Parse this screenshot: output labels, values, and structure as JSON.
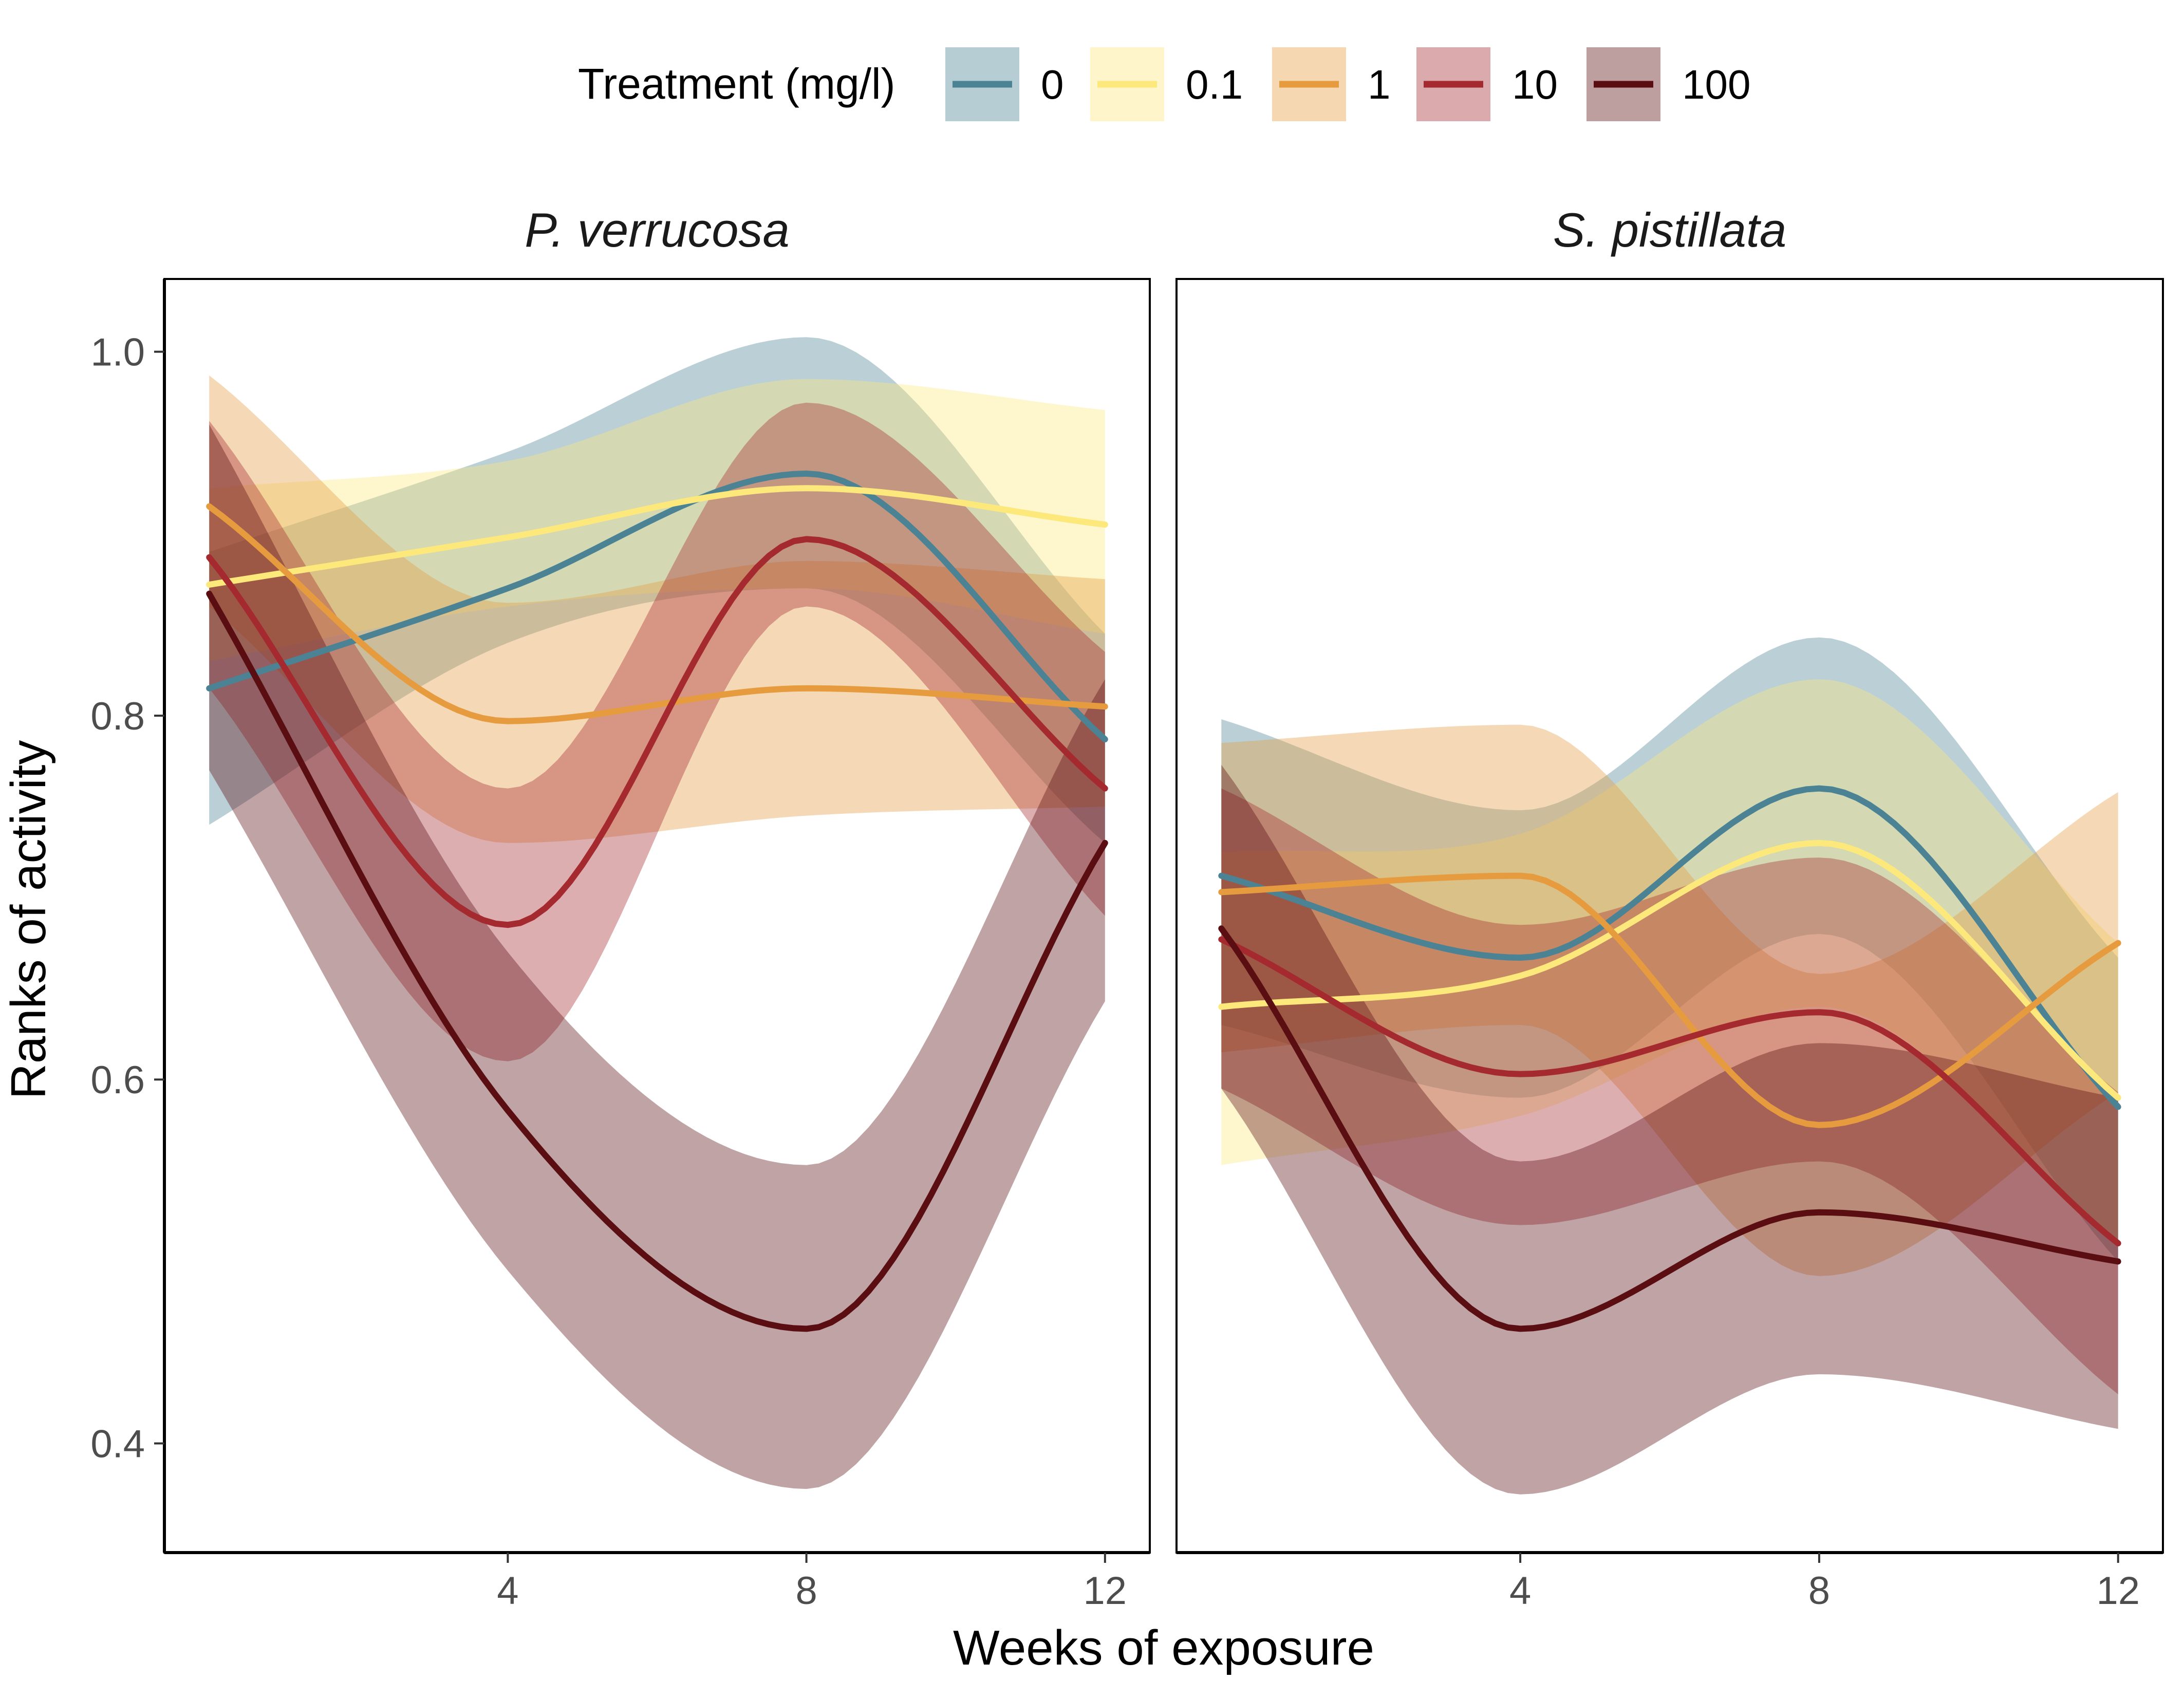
{
  "chart_data": {
    "type": "line",
    "legend": {
      "title": "Treatment (mg/l)",
      "position": "top",
      "entries": [
        {
          "label": "0",
          "color": "#4b8394"
        },
        {
          "label": "0.1",
          "color": "#fce87b"
        },
        {
          "label": "1",
          "color": "#e59b3e"
        },
        {
          "label": "10",
          "color": "#a52a2f"
        },
        {
          "label": "100",
          "color": "#5a0e12"
        }
      ]
    },
    "xlabel": "Weeks of exposure",
    "ylabel": "Ranks of activity",
    "x_ticks": [
      4,
      8,
      12
    ],
    "x_tick_labels": [
      "4",
      "8",
      "12"
    ],
    "y_ticks": [
      0.4,
      0.6,
      0.8,
      1.0
    ],
    "y_tick_labels": [
      "0.4",
      "0.6",
      "0.8",
      "1.0"
    ],
    "xlim": [
      -0.6,
      12.6
    ],
    "ylim": [
      0.34,
      1.04
    ],
    "grid": false,
    "x": [
      0,
      4,
      8,
      12
    ],
    "panels": [
      {
        "title": "P. verrucosa",
        "series": [
          {
            "name": "0",
            "color": "#4b8394",
            "values": [
              0.815,
              0.87,
              0.933,
              0.787
            ],
            "lower": [
              0.74,
              0.84,
              0.87,
              0.73
            ],
            "upper": [
              0.89,
              0.945,
              1.008,
              0.845
            ]
          },
          {
            "name": "0.1",
            "color": "#fce87b",
            "values": [
              0.872,
              0.898,
              0.925,
              0.905
            ],
            "lower": [
              0.83,
              0.86,
              0.87,
              0.845
            ],
            "upper": [
              0.925,
              0.94,
              0.985,
              0.968
            ]
          },
          {
            "name": "1",
            "color": "#e59b3e",
            "values": [
              0.915,
              0.797,
              0.815,
              0.805
            ],
            "lower": [
              0.86,
              0.73,
              0.745,
              0.75
            ],
            "upper": [
              0.987,
              0.862,
              0.885,
              0.875
            ]
          },
          {
            "name": "10",
            "color": "#a52a2f",
            "values": [
              0.887,
              0.685,
              0.897,
              0.76
            ],
            "lower": [
              0.815,
              0.61,
              0.86,
              0.69
            ],
            "upper": [
              0.962,
              0.76,
              0.972,
              0.835
            ]
          },
          {
            "name": "100",
            "color": "#5a0e12",
            "values": [
              0.867,
              0.583,
              0.463,
              0.73
            ],
            "lower": [
              0.77,
              0.495,
              0.375,
              0.643
            ],
            "upper": [
              0.96,
              0.67,
              0.553,
              0.82
            ]
          }
        ]
      },
      {
        "title": "S. pistillata",
        "series": [
          {
            "name": "0",
            "color": "#4b8394",
            "values": [
              0.712,
              0.667,
              0.76,
              0.585
            ],
            "lower": [
              0.63,
              0.59,
              0.68,
              0.5
            ],
            "upper": [
              0.798,
              0.748,
              0.843,
              0.667
            ]
          },
          {
            "name": "0.1",
            "color": "#fce87b",
            "values": [
              0.64,
              0.657,
              0.73,
              0.59
            ],
            "lower": [
              0.553,
              0.58,
              0.64,
              0.51
            ],
            "upper": [
              0.725,
              0.735,
              0.82,
              0.675
            ]
          },
          {
            "name": "1",
            "color": "#e59b3e",
            "values": [
              0.703,
              0.712,
              0.575,
              0.675
            ],
            "lower": [
              0.615,
              0.63,
              0.492,
              0.593
            ],
            "upper": [
              0.785,
              0.795,
              0.658,
              0.758
            ]
          },
          {
            "name": "10",
            "color": "#a52a2f",
            "values": [
              0.677,
              0.603,
              0.637,
              0.51
            ],
            "lower": [
              0.595,
              0.52,
              0.555,
              0.427
            ],
            "upper": [
              0.76,
              0.685,
              0.722,
              0.593
            ]
          },
          {
            "name": "100",
            "color": "#5a0e12",
            "values": [
              0.683,
              0.463,
              0.527,
              0.5
            ],
            "lower": [
              0.595,
              0.372,
              0.438,
              0.408
            ],
            "upper": [
              0.773,
              0.555,
              0.62,
              0.59
            ]
          }
        ]
      }
    ]
  }
}
